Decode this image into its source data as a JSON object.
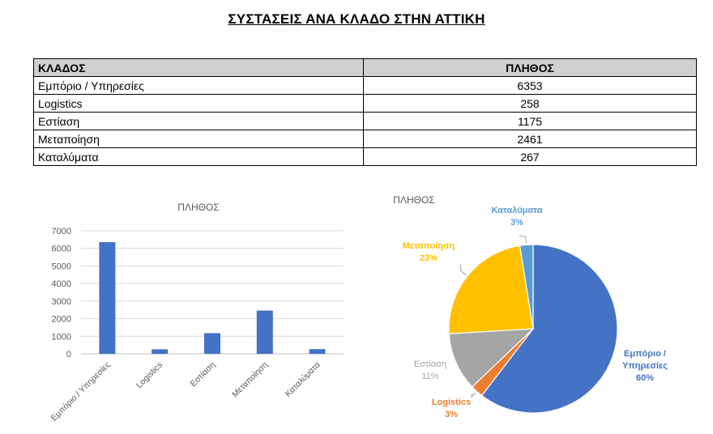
{
  "title": "ΣΥΣΤΑΣΕΙΣ ΑΝΑ ΚΛΑΔΟ ΣΤΗΝ ΑΤΤΙΚΗ",
  "table": {
    "headers": [
      "ΚΛΑΔΟΣ",
      "ΠΛΗΘΟΣ"
    ],
    "rows": [
      [
        "Εμπόριο / Υπηρεσίες",
        "6353"
      ],
      [
        "Logistics",
        "258"
      ],
      [
        "Εστίαση",
        "1175"
      ],
      [
        "Μεταποίηση",
        "2461"
      ],
      [
        "Καταλύματα",
        "267"
      ]
    ]
  },
  "chart_data": [
    {
      "type": "bar",
      "title": "ΠΛΗΘΟΣ",
      "categories": [
        "Εμπόριο / Υπηρεσίες",
        "Logistics",
        "Εστίαση",
        "Μεταποίηση",
        "Καταλύματα"
      ],
      "values": [
        6353,
        258,
        1175,
        2461,
        267
      ],
      "ylim": [
        0,
        7000
      ],
      "yticks": [
        "0",
        "1000",
        "2000",
        "3000",
        "4000",
        "5000",
        "6000",
        "7000"
      ],
      "grid": true,
      "color": "#4472c4"
    },
    {
      "type": "pie",
      "title": "ΠΛΗΘΟΣ",
      "slices": [
        {
          "label": "Εμπόριο / Υπηρεσίες",
          "value": 6353,
          "pct": "60%",
          "color": "#4472c4"
        },
        {
          "label": "Logistics",
          "value": 258,
          "pct": "3%",
          "color": "#ed7d31"
        },
        {
          "label": "Εστίαση",
          "value": 1175,
          "pct": "11%",
          "color": "#a5a5a5"
        },
        {
          "label": "Μεταποίηση",
          "value": 2461,
          "pct": "23%",
          "color": "#ffc000"
        },
        {
          "label": "Καταλύματα",
          "value": 267,
          "pct": "3%",
          "color": "#5b9bd5"
        }
      ]
    }
  ]
}
